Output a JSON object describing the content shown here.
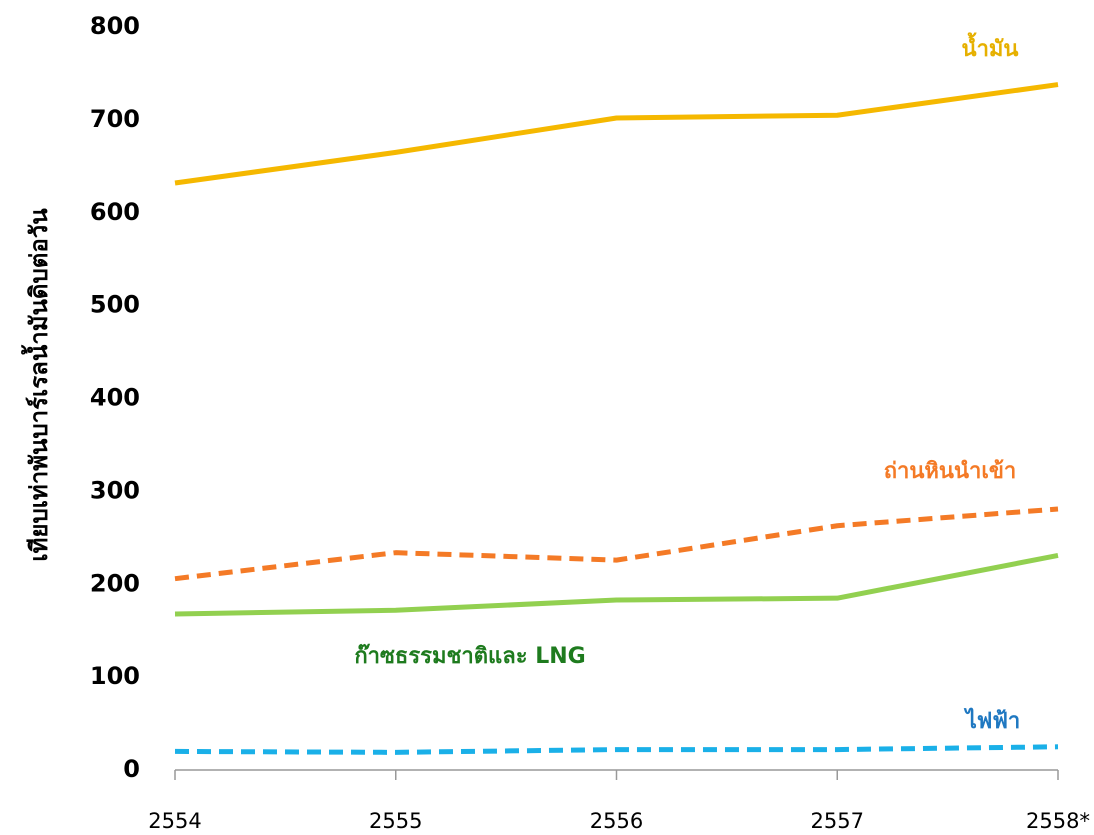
{
  "chart_data": {
    "type": "line",
    "y_label": "เทียบเท่าพันบาร์เรลน้ำมันดิบต่อวัน",
    "categories": [
      "2554",
      "2555",
      "2556",
      "2557",
      "2558*"
    ],
    "ylim": [
      0,
      800
    ],
    "yticks": [
      0,
      100,
      200,
      300,
      400,
      500,
      600,
      700,
      800
    ],
    "series": [
      {
        "name": "น้ำมัน",
        "color": "#f5b800",
        "label_color": "#e6b000",
        "dashed": false,
        "values": [
          632,
          665,
          702,
          705,
          738
        ]
      },
      {
        "name": "ถ่านหินนำเข้า",
        "color": "#f47a26",
        "label_color": "#f47a26",
        "dashed": true,
        "values": [
          206,
          234,
          226,
          263,
          281
        ]
      },
      {
        "name": "ก๊าซธรรมชาติและ LNG",
        "color": "#92d050",
        "label_color": "#1e7b1e",
        "dashed": false,
        "values": [
          168,
          172,
          183,
          185,
          231
        ]
      },
      {
        "name": "ไฟฟ้า",
        "color": "#1ab0e8",
        "label_color": "#1f78c1",
        "dashed": true,
        "values": [
          20,
          19,
          22,
          22,
          25
        ]
      }
    ]
  }
}
